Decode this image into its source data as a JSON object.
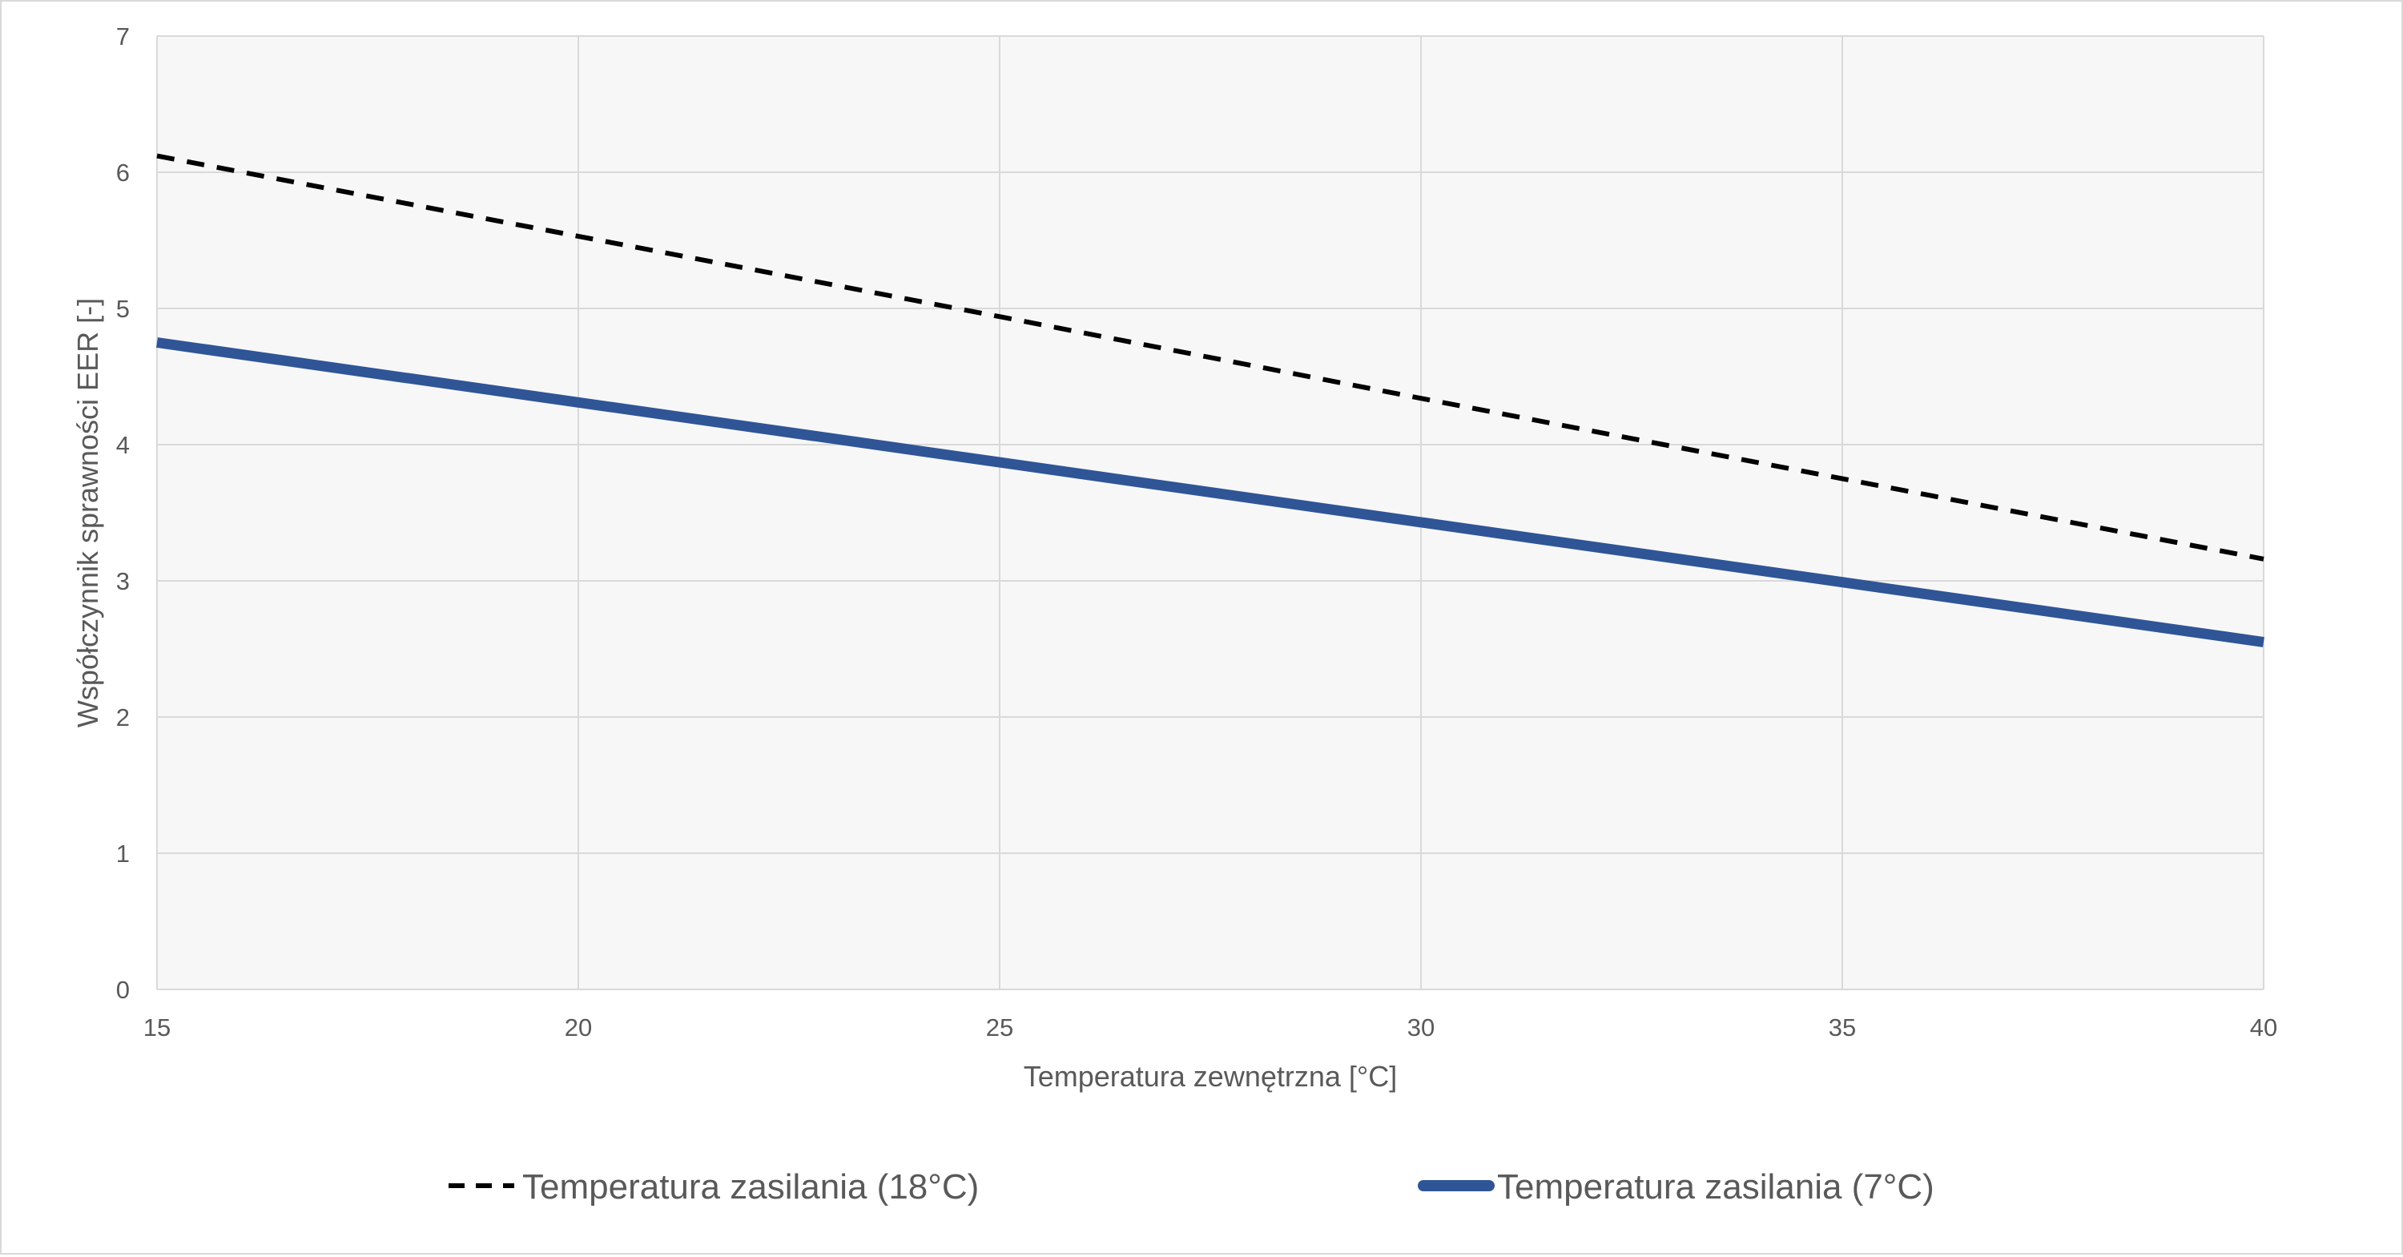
{
  "chart_data": {
    "type": "line",
    "title": "",
    "xlabel": "Temperatura zewnętrzna [°C]",
    "ylabel": "Współczynnik sprawności EER [-]",
    "xlim": [
      15,
      40
    ],
    "ylim": [
      0,
      7
    ],
    "xticks": [
      15,
      20,
      25,
      30,
      35,
      40
    ],
    "yticks": [
      0,
      1,
      2,
      3,
      4,
      5,
      6,
      7
    ],
    "grid": true,
    "legend_position": "bottom",
    "series": [
      {
        "name": "Temperatura zasilania (18°C)",
        "x": [
          15,
          20,
          25,
          30,
          35,
          40
        ],
        "y": [
          6.12,
          5.53,
          4.94,
          4.34,
          3.75,
          3.16
        ],
        "color": "#000000",
        "style": "dashed"
      },
      {
        "name": "Temperatura zasilania (7°C)",
        "x": [
          15,
          20,
          25,
          30,
          35,
          40
        ],
        "y": [
          4.75,
          4.31,
          3.87,
          3.43,
          2.99,
          2.55
        ],
        "color": "#2F5597",
        "style": "solid"
      }
    ]
  },
  "colors": {
    "plot_background": "#F7F7F7",
    "gridline": "#D9D9D9",
    "text": "#595959"
  }
}
